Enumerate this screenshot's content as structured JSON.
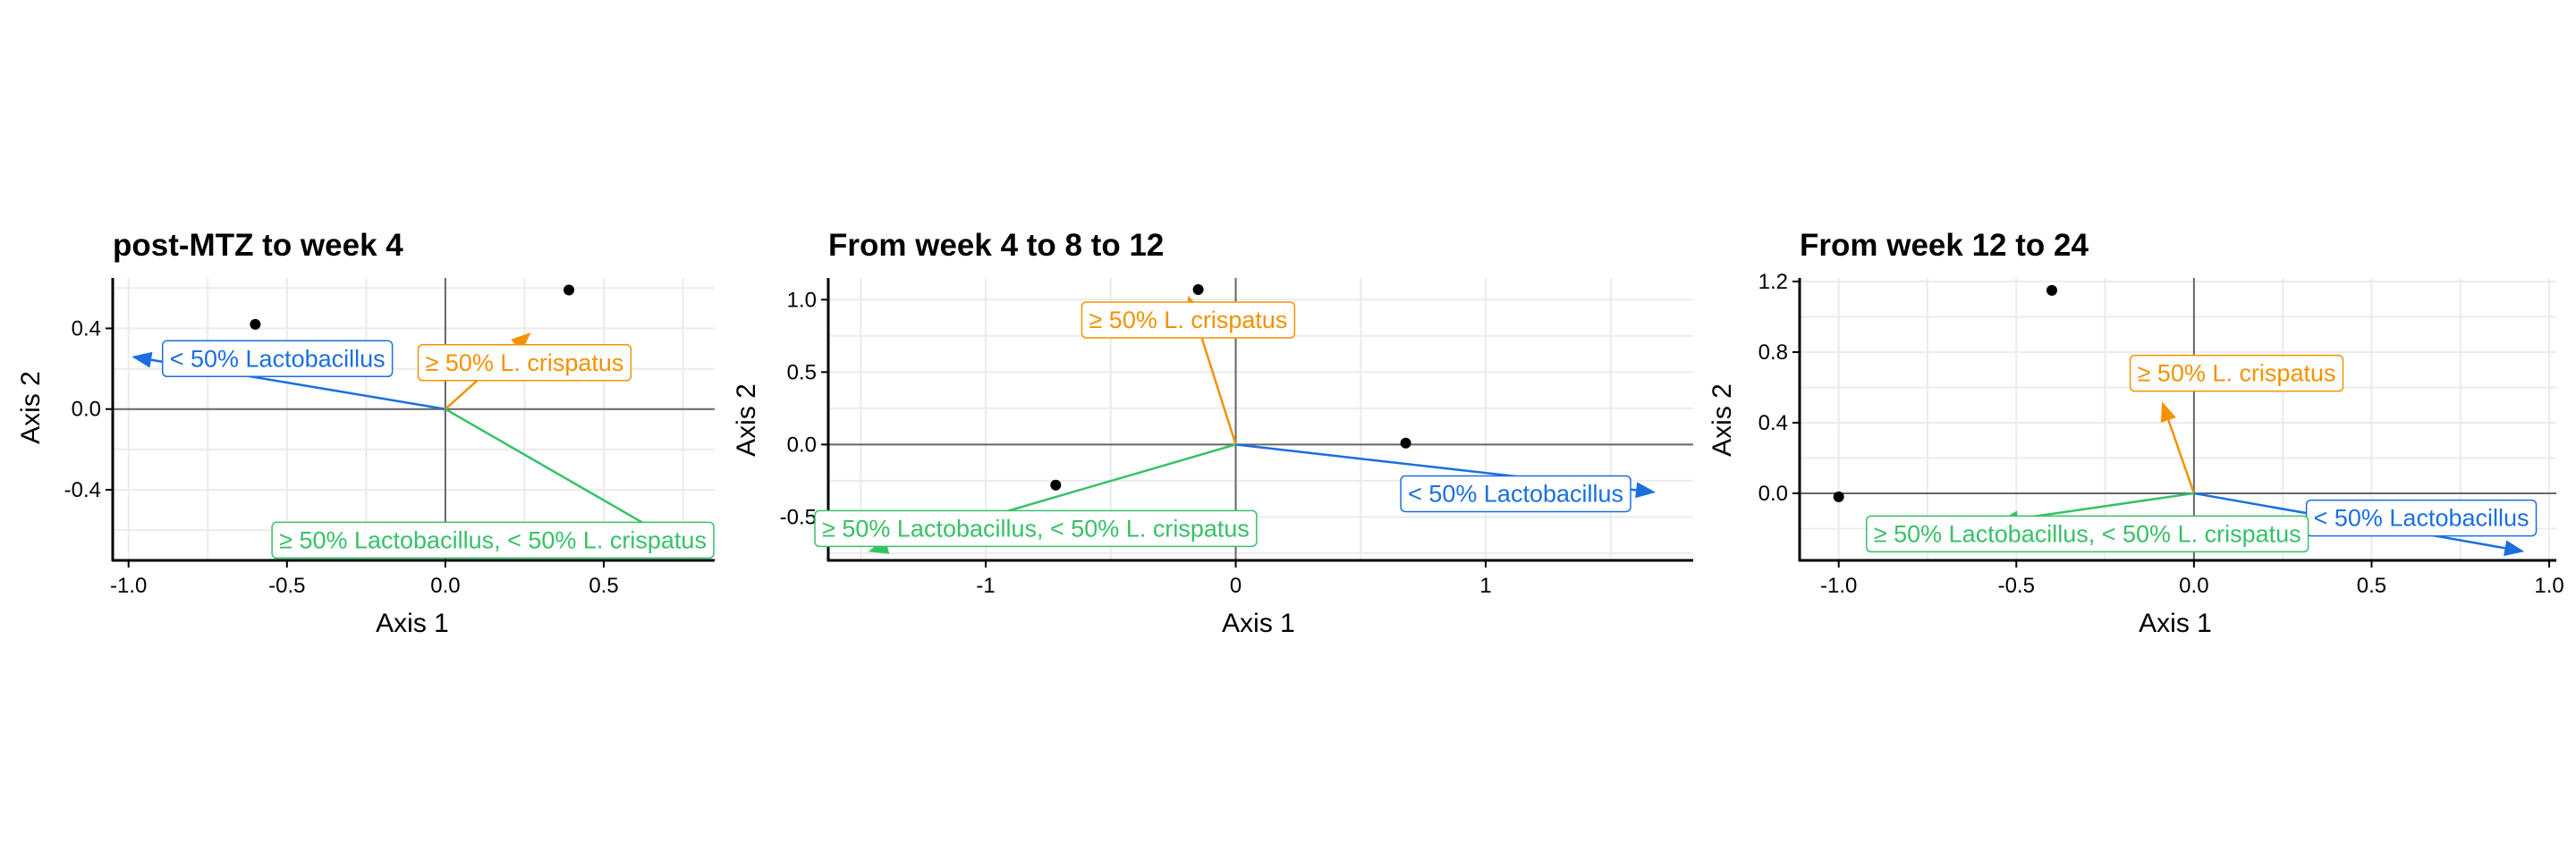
{
  "colors": {
    "lactobacillus_lt50": "#1a6fdf",
    "crispatus_ge50": "#f39200",
    "lacto_ge50_crisp_lt50": "#37c167",
    "points": "#000000",
    "grid": "#ebebeb",
    "zero_line": "#666666",
    "axis": "#000000"
  },
  "chart_data": [
    {
      "type": "scatter",
      "title": "post-MTZ to week 4",
      "xlabel": "Axis 1",
      "ylabel": "Axis 2",
      "xlim": [
        -1.05,
        0.85
      ],
      "ylim": [
        -0.75,
        0.65
      ],
      "xticks": [
        -1.0,
        -0.5,
        0.0,
        0.5
      ],
      "xtick_labels": [
        "-1.0",
        "-0.5",
        "0.0",
        "0.5"
      ],
      "yticks": [
        -0.4,
        0.0,
        0.4
      ],
      "ytick_labels": [
        "-0.4",
        "0.0",
        "0.4"
      ],
      "grid": true,
      "points": [
        {
          "x": -0.6,
          "y": 0.42
        },
        {
          "x": 0.39,
          "y": 0.59
        },
        {
          "x": 0.76,
          "y": -0.71
        }
      ],
      "arrows": [
        {
          "name": "< 50% Lactobacillus",
          "x": -0.99,
          "y": 0.26,
          "color_key": "lactobacillus_lt50",
          "label_x": -0.53,
          "label_y": 0.25
        },
        {
          "name": "≥ 50% L. crispatus",
          "x": 0.27,
          "y": 0.38,
          "color_key": "crispatus_ge50",
          "label_x": 0.25,
          "label_y": 0.23
        },
        {
          "name": "≥ 50% Lactobacillus, < 50% L. crispatus",
          "x": 0.73,
          "y": -0.66,
          "color_key": "lacto_ge50_crisp_lt50",
          "label_x": 0.15,
          "label_y": -0.65
        }
      ]
    },
    {
      "type": "scatter",
      "title": "From week 4 to 8 to 12",
      "xlabel": "Axis 1",
      "ylabel": "Axis 2",
      "xlim": [
        -1.63,
        1.83
      ],
      "ylim": [
        -0.8,
        1.15
      ],
      "xticks": [
        -1,
        0,
        1
      ],
      "xtick_labels": [
        "-1",
        "0",
        "1"
      ],
      "yticks": [
        -0.5,
        0.0,
        0.5,
        1.0
      ],
      "ytick_labels": [
        "-0.5",
        "0.0",
        "0.5",
        "1.0"
      ],
      "grid": true,
      "points": [
        {
          "x": -0.15,
          "y": 1.07
        },
        {
          "x": 0.68,
          "y": 0.01
        },
        {
          "x": -0.72,
          "y": -0.28
        }
      ],
      "arrows": [
        {
          "name": "≥ 50% L. crispatus",
          "x": -0.19,
          "y": 1.03,
          "color_key": "crispatus_ge50",
          "label_x": -0.19,
          "label_y": 0.86
        },
        {
          "name": "< 50% Lactobacillus",
          "x": 1.68,
          "y": -0.33,
          "color_key": "lactobacillus_lt50",
          "label_x": 1.12,
          "label_y": -0.34
        },
        {
          "name": "≥ 50% Lactobacillus, < 50% L. crispatus",
          "x": -1.47,
          "y": -0.74,
          "color_key": "lacto_ge50_crisp_lt50",
          "label_x": -0.8,
          "label_y": -0.58
        }
      ]
    },
    {
      "type": "scatter",
      "title": "From week 12 to 24",
      "xlabel": "Axis 1",
      "ylabel": "Axis 2",
      "xlim": [
        -1.11,
        1.02
      ],
      "ylim": [
        -0.38,
        1.22
      ],
      "xticks": [
        -1.0,
        -0.5,
        0.0,
        0.5,
        1.0
      ],
      "xtick_labels": [
        "-1.0",
        "-0.5",
        "0.0",
        "0.5",
        "1.0"
      ],
      "yticks": [
        0.0,
        0.4,
        0.8,
        1.2
      ],
      "ytick_labels": [
        "0.0",
        "0.4",
        "0.8",
        "1.2"
      ],
      "grid": true,
      "points": [
        {
          "x": -0.4,
          "y": 1.15
        },
        {
          "x": -1.0,
          "y": -0.02
        }
      ],
      "arrows": [
        {
          "name": "≥ 50% L. crispatus",
          "x": -0.09,
          "y": 0.52,
          "color_key": "crispatus_ge50",
          "label_x": 0.12,
          "label_y": 0.68
        },
        {
          "name": "< 50% Lactobacillus",
          "x": 0.93,
          "y": -0.33,
          "color_key": "lactobacillus_lt50",
          "label_x": 0.64,
          "label_y": -0.14
        },
        {
          "name": "≥ 50% Lactobacillus, < 50% L. crispatus",
          "x": -0.55,
          "y": -0.16,
          "color_key": "lacto_ge50_crisp_lt50",
          "label_x": -0.3,
          "label_y": -0.23
        }
      ]
    }
  ]
}
